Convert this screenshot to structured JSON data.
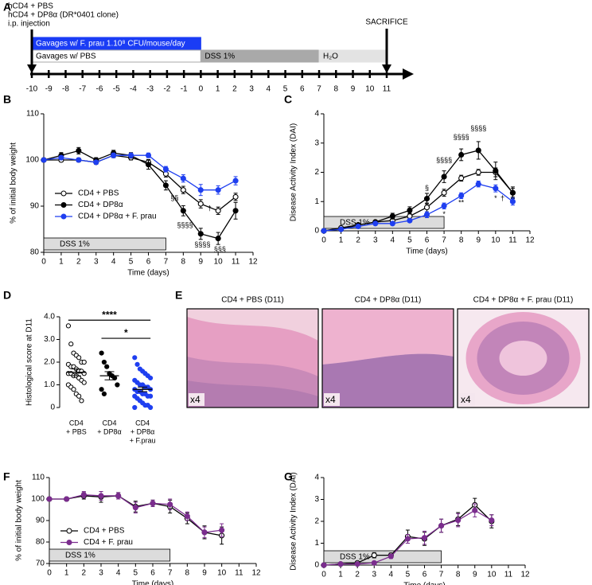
{
  "timeline": {
    "panel": "A",
    "ticks": [
      -10,
      -9,
      -8,
      -7,
      -6,
      -5,
      -4,
      -3,
      -2,
      -1,
      0,
      1,
      2,
      3,
      4,
      5,
      6,
      7,
      8,
      9,
      10,
      11
    ],
    "events": [
      {
        "day": -10,
        "label": [
          "hCD4 + PBS",
          "hCD4 + DP8α (DR*0401 clone)",
          "i.p. injection"
        ]
      },
      {
        "day": 11,
        "label": [
          "SACRIFICE"
        ]
      }
    ],
    "bars": [
      {
        "label": "Gavages w/ F. prau 1.10⁸ CFU/mouse/day",
        "start": -10,
        "end": 0,
        "color": "#1a3cf5"
      },
      {
        "label": "Gavages w/ PBS",
        "start": -10,
        "end": 0,
        "color": "#ffffff"
      },
      {
        "label": "DSS 1%",
        "start": 0,
        "end": 7,
        "color": "#a9a9a9"
      },
      {
        "label": "H₂O",
        "start": 7,
        "end": 11,
        "color": "#e3e3e3"
      }
    ]
  },
  "histology": {
    "panel": "E",
    "images": [
      {
        "caption": "CD4 + PBS (D11)",
        "magnification": "x4"
      },
      {
        "caption": "CD4 + DP8α (D11)",
        "magnification": "x4"
      },
      {
        "caption": "CD4 + DP8α + F. prau (D11)",
        "magnification": "x4"
      }
    ]
  },
  "chart_data": [
    {
      "type": "line",
      "panel": "B",
      "xlabel": "Time (days)",
      "ylabel": "% of initial body weight",
      "x": [
        0,
        1,
        2,
        3,
        4,
        5,
        6,
        7,
        8,
        9,
        10,
        11
      ],
      "xlim": [
        0,
        12
      ],
      "xticks": [
        0,
        1,
        2,
        3,
        4,
        5,
        6,
        7,
        8,
        9,
        10,
        11,
        12
      ],
      "ylim": [
        80,
        110
      ],
      "yticks": [
        80,
        90,
        100,
        110
      ],
      "legend": "left",
      "shade": {
        "label": "DSS 1%",
        "x": [
          0,
          7
        ]
      },
      "series": [
        {
          "name": "CD4 + PBS",
          "color": "#000000",
          "marker": "open",
          "values": [
            100,
            100,
            100,
            99.5,
            101,
            100.5,
            99.5,
            97,
            93.5,
            90.5,
            89,
            92
          ],
          "errors": [
            0.3,
            0.4,
            0.4,
            0.4,
            0.5,
            0.5,
            0.6,
            0.7,
            0.8,
            0.9,
            0.8,
            0.8
          ]
        },
        {
          "name": "CD4 + DP8α",
          "color": "#000000",
          "marker": "filled",
          "values": [
            100,
            101,
            102,
            100,
            101.5,
            101,
            99,
            94.5,
            89,
            84,
            83,
            89
          ],
          "errors": [
            0.3,
            0.6,
            0.7,
            0.5,
            0.6,
            0.6,
            1.0,
            1.0,
            1.1,
            1.2,
            1.3,
            1.8
          ]
        },
        {
          "name": "CD4 + DP8α + F. prau",
          "color": "#1f3ff0",
          "marker": "filled",
          "values": [
            100,
            100.5,
            100,
            99.5,
            101,
            101,
            101,
            98,
            96,
            93.5,
            93.5,
            95.5
          ],
          "errors": [
            0.3,
            0.4,
            0.4,
            0.4,
            0.5,
            0.5,
            0.5,
            0.6,
            0.8,
            1.2,
            0.9,
            0.9
          ]
        }
      ],
      "annotations": [
        {
          "text": "§§",
          "x": 7.5,
          "y": 91.7
        },
        {
          "text": "§§§§",
          "x": 8.1,
          "y": 85.8
        },
        {
          "text": "§§§§",
          "x": 9.1,
          "y": 81.6
        },
        {
          "text": "§§§",
          "x": 10.1,
          "y": 80.6
        },
        {
          "text": "†",
          "x": 9.5,
          "y": 89.5
        }
      ]
    },
    {
      "type": "line",
      "panel": "C",
      "xlabel": "Time (days)",
      "ylabel": "Disease Activity Index (DAI)",
      "x": [
        0,
        1,
        2,
        3,
        4,
        5,
        6,
        7,
        8,
        9,
        10,
        11
      ],
      "xlim": [
        0,
        12
      ],
      "xticks": [
        0,
        1,
        2,
        3,
        4,
        5,
        6,
        7,
        8,
        9,
        10,
        11,
        12
      ],
      "ylim": [
        0,
        4
      ],
      "yticks": [
        0,
        1,
        2,
        3,
        4
      ],
      "shade": {
        "label": "DSS 1%",
        "x": [
          0,
          7
        ]
      },
      "series": [
        {
          "color": "#000000",
          "marker": "open",
          "values": [
            0,
            0.1,
            0.2,
            0.3,
            0.35,
            0.5,
            0.8,
            1.3,
            1.8,
            2.0,
            2.0,
            1.3
          ],
          "errors": [
            0,
            0.03,
            0.05,
            0.05,
            0.08,
            0.1,
            0.15,
            0.12,
            0.1,
            0.1,
            0.15,
            0.15
          ]
        },
        {
          "color": "#000000",
          "marker": "filled",
          "values": [
            0,
            0.05,
            0.2,
            0.3,
            0.5,
            0.7,
            1.1,
            1.85,
            2.6,
            2.75,
            2.05,
            1.3
          ],
          "errors": [
            0,
            0.03,
            0.05,
            0.05,
            0.1,
            0.12,
            0.18,
            0.2,
            0.2,
            0.3,
            0.3,
            0.2
          ]
        },
        {
          "color": "#1f3ff0",
          "marker": "filled",
          "values": [
            0,
            0.05,
            0.15,
            0.25,
            0.25,
            0.35,
            0.55,
            0.85,
            1.2,
            1.6,
            1.45,
            1.0
          ],
          "errors": [
            0,
            0.03,
            0.04,
            0.05,
            0.05,
            0.06,
            0.1,
            0.1,
            0.1,
            0.1,
            0.12,
            0.12
          ]
        }
      ],
      "annotations": [
        {
          "text": "§",
          "x": 6,
          "y": 1.45
        },
        {
          "text": "§§§§",
          "x": 7,
          "y": 2.4
        },
        {
          "text": "§§§§",
          "x": 8,
          "y": 3.2
        },
        {
          "text": "§§§§",
          "x": 9,
          "y": 3.5
        },
        {
          "text": "*",
          "x": 7,
          "y": 0.55
        },
        {
          "text": "**",
          "x": 8,
          "y": 0.95
        },
        {
          "text": "*",
          "x": 10,
          "y": 1.1
        },
        {
          "text": "†",
          "x": 10.4,
          "y": 1.1
        }
      ]
    },
    {
      "type": "dot",
      "panel": "D",
      "ylabel": "Histological score at D11",
      "categories": [
        [
          "CD4",
          "+ PBS"
        ],
        [
          "CD4",
          "+ DP8α"
        ],
        [
          "CD4",
          "+ DP8α",
          "+ F.prau"
        ]
      ],
      "ylim": [
        0,
        4
      ],
      "yticks": [
        0,
        {
          "value": 1,
          "label": "1.0"
        },
        {
          "value": 2,
          "label": "2.0"
        },
        {
          "value": 3,
          "label": "3.0"
        },
        {
          "value": 4,
          "label": "4.0"
        }
      ],
      "colors": [
        "#000000",
        "#000000",
        "#1f3ff0"
      ],
      "markers": [
        "open",
        "filled",
        "filled"
      ],
      "values": [
        [
          3.6,
          2.8,
          2.4,
          2.3,
          2.2,
          2.0,
          2.0,
          1.9,
          1.8,
          1.8,
          1.7,
          1.6,
          1.6,
          1.5,
          1.5,
          1.5,
          1.4,
          1.4,
          1.3,
          1.2,
          1.1,
          1.0,
          0.9,
          0.8,
          0.6,
          0.5,
          0.3
        ],
        [
          2.4,
          2.0,
          1.8,
          1.5,
          1.4,
          1.3,
          1.0,
          0.8,
          0.6
        ],
        [
          2.2,
          1.9,
          1.7,
          1.6,
          1.5,
          1.4,
          1.3,
          1.2,
          1.1,
          1.0,
          1.0,
          0.9,
          0.9,
          0.8,
          0.8,
          0.7,
          0.7,
          0.6,
          0.6,
          0.5,
          0.5,
          0.5,
          0.4,
          0.3,
          0.2,
          0.1,
          0.1,
          0,
          0
        ]
      ],
      "means": [
        1.55,
        1.4,
        0.8
      ],
      "errors": [
        0.15,
        0.18,
        0.1
      ],
      "brackets": [
        {
          "from": 0,
          "to": 2,
          "y": 3.85,
          "label": "****"
        },
        {
          "from": 1,
          "to": 2,
          "y": 3.05,
          "label": "*"
        }
      ]
    },
    {
      "type": "line",
      "panel": "F",
      "xlabel": "Time (days)",
      "ylabel": "% of initial body weight",
      "x": [
        0,
        1,
        2,
        3,
        4,
        5,
        6,
        7,
        8,
        9,
        10
      ],
      "xlim": [
        0,
        12
      ],
      "xticks": [
        0,
        1,
        2,
        3,
        4,
        5,
        6,
        7,
        8,
        9,
        10,
        11,
        12
      ],
      "ylim": [
        70,
        110
      ],
      "yticks": [
        70,
        80,
        90,
        100,
        110
      ],
      "legend": "left",
      "shade": {
        "label": "DSS 1%",
        "x": [
          0,
          7
        ]
      },
      "series": [
        {
          "name": "CD4 + PBS",
          "color": "#000000",
          "marker": "open",
          "values": [
            100,
            100,
            101.5,
            101,
            101.5,
            96.5,
            98,
            96.5,
            91,
            84.5,
            83
          ],
          "errors": [
            0.3,
            0.5,
            1.5,
            2.5,
            1.5,
            2.5,
            1.5,
            3,
            2.5,
            3,
            4
          ]
        },
        {
          "name": "CD4 + F. prau",
          "color": "#7b2d8e",
          "marker": "filled",
          "values": [
            100,
            100,
            102,
            101.5,
            101.5,
            96,
            98,
            97.5,
            92,
            84.5,
            85.5
          ],
          "errors": [
            0.3,
            0.5,
            1.5,
            2,
            1.5,
            2.5,
            1.5,
            2.5,
            2,
            2.5,
            3
          ]
        }
      ]
    },
    {
      "type": "line",
      "panel": "G",
      "xlabel": "Time (days)",
      "ylabel": "Disease Activity Index (DAI)",
      "x": [
        0,
        1,
        2,
        3,
        4,
        5,
        6,
        7,
        8,
        9,
        10
      ],
      "xlim": [
        0,
        12
      ],
      "xticks": [
        0,
        1,
        2,
        3,
        4,
        5,
        6,
        7,
        8,
        9,
        10,
        11,
        12
      ],
      "ylim": [
        0,
        4
      ],
      "yticks": [
        0,
        1,
        2,
        3,
        4
      ],
      "shade": {
        "label": "DSS 1%",
        "x": [
          0,
          7
        ]
      },
      "series": [
        {
          "color": "#000000",
          "marker": "open",
          "values": [
            0,
            0.05,
            0.1,
            0.45,
            0.45,
            1.3,
            1.2,
            1.8,
            2.1,
            2.75,
            2.0
          ],
          "errors": [
            0,
            0.03,
            0.05,
            0.12,
            0.1,
            0.3,
            0.3,
            0.3,
            0.3,
            0.3,
            0.3
          ]
        },
        {
          "color": "#7b2d8e",
          "marker": "filled",
          "values": [
            0,
            0.05,
            0.05,
            0.1,
            0.4,
            1.2,
            1.25,
            1.8,
            2.05,
            2.5,
            2.05
          ],
          "errors": [
            0,
            0.03,
            0.03,
            0.05,
            0.1,
            0.2,
            0.3,
            0.3,
            0.3,
            0.3,
            0.25
          ]
        }
      ]
    }
  ]
}
